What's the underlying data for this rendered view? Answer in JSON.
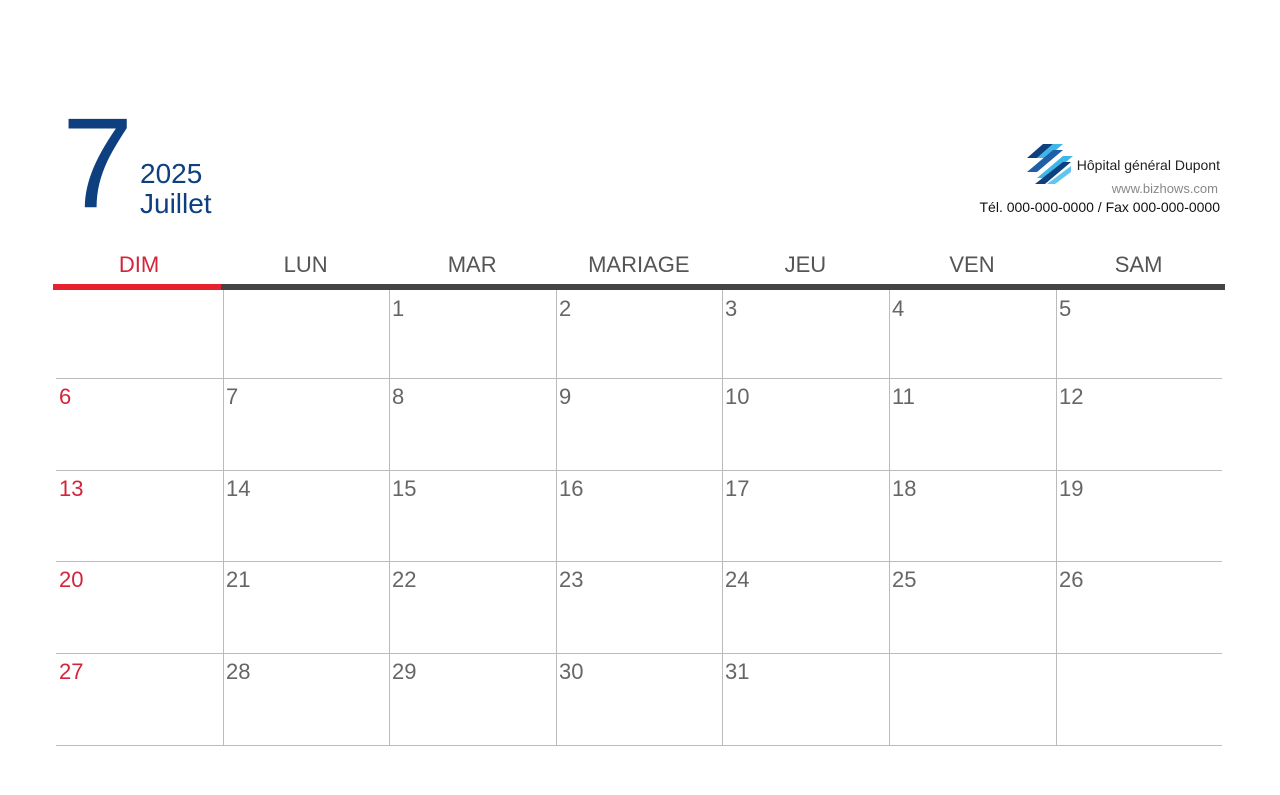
{
  "header": {
    "month_number": "7",
    "year": "2025",
    "month_name": "Juillet"
  },
  "company": {
    "name": "Hôpital général Dupont",
    "website": "www.bizhows.com",
    "contact": "Tél. 000-000-0000 / Fax 000-000-0000",
    "logo_colors": [
      "#0e3f7e",
      "#3fb6e8"
    ]
  },
  "weekdays": [
    "DIM",
    "LUN",
    "MAR",
    "MARIAGE",
    "JEU",
    "VEN",
    "SAM"
  ],
  "colors": {
    "sunday": "#d4243a",
    "accent": "#0e3f7e",
    "bar_sunday": "#e8212e",
    "bar": "#444444"
  },
  "weeks": [
    [
      "",
      "",
      "1",
      "2",
      "3",
      "4",
      "5"
    ],
    [
      "6",
      "7",
      "8",
      "9",
      "10",
      "11",
      "12"
    ],
    [
      "13",
      "14",
      "15",
      "16",
      "17",
      "18",
      "19"
    ],
    [
      "20",
      "21",
      "22",
      "23",
      "24",
      "25",
      "26"
    ],
    [
      "27",
      "28",
      "29",
      "30",
      "31",
      "",
      ""
    ]
  ]
}
